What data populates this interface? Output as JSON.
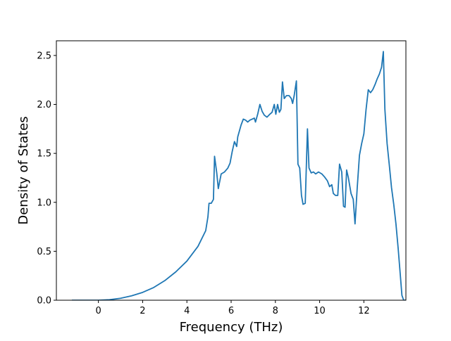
{
  "chart_data": {
    "type": "line",
    "title": "",
    "xlabel": "Frequency (THz)",
    "ylabel": "Density of States",
    "xlim": [
      -1.9,
      13.9
    ],
    "ylim": [
      0.0,
      2.65
    ],
    "xticks": [
      0,
      2,
      4,
      6,
      8,
      10,
      12
    ],
    "xtick_labels": [
      "0",
      "2",
      "4",
      "6",
      "8",
      "10",
      "12"
    ],
    "yticks": [
      0.0,
      0.5,
      1.0,
      1.5,
      2.0,
      2.5
    ],
    "ytick_labels": [
      "0.0",
      "0.5",
      "1.0",
      "1.5",
      "2.0",
      "2.5"
    ],
    "grid": false,
    "legend": false,
    "series": [
      {
        "color": "#1f77b4",
        "points": [
          [
            -1.2,
            0.0
          ],
          [
            0.0,
            0.0
          ],
          [
            0.5,
            0.005
          ],
          [
            1.0,
            0.02
          ],
          [
            1.5,
            0.045
          ],
          [
            2.0,
            0.08
          ],
          [
            2.5,
            0.13
          ],
          [
            3.0,
            0.2
          ],
          [
            3.5,
            0.29
          ],
          [
            4.0,
            0.4
          ],
          [
            4.5,
            0.55
          ],
          [
            4.85,
            0.71
          ],
          [
            4.95,
            0.85
          ],
          [
            5.0,
            0.99
          ],
          [
            5.1,
            0.99
          ],
          [
            5.2,
            1.03
          ],
          [
            5.25,
            1.47
          ],
          [
            5.35,
            1.3
          ],
          [
            5.42,
            1.14
          ],
          [
            5.55,
            1.29
          ],
          [
            5.7,
            1.31
          ],
          [
            5.85,
            1.35
          ],
          [
            5.95,
            1.4
          ],
          [
            6.05,
            1.52
          ],
          [
            6.15,
            1.62
          ],
          [
            6.25,
            1.57
          ],
          [
            6.3,
            1.67
          ],
          [
            6.45,
            1.79
          ],
          [
            6.55,
            1.85
          ],
          [
            6.65,
            1.84
          ],
          [
            6.75,
            1.82
          ],
          [
            6.85,
            1.84
          ],
          [
            6.95,
            1.85
          ],
          [
            7.05,
            1.86
          ],
          [
            7.1,
            1.82
          ],
          [
            7.2,
            1.9
          ],
          [
            7.3,
            2.0
          ],
          [
            7.4,
            1.93
          ],
          [
            7.5,
            1.89
          ],
          [
            7.62,
            1.87
          ],
          [
            7.75,
            1.9
          ],
          [
            7.85,
            1.92
          ],
          [
            7.95,
            2.0
          ],
          [
            8.02,
            1.9
          ],
          [
            8.1,
            2.0
          ],
          [
            8.18,
            1.92
          ],
          [
            8.25,
            1.95
          ],
          [
            8.32,
            2.23
          ],
          [
            8.4,
            2.06
          ],
          [
            8.5,
            2.09
          ],
          [
            8.62,
            2.09
          ],
          [
            8.72,
            2.06
          ],
          [
            8.78,
            2.01
          ],
          [
            8.85,
            2.09
          ],
          [
            8.95,
            2.24
          ],
          [
            9.02,
            1.39
          ],
          [
            9.1,
            1.35
          ],
          [
            9.18,
            1.07
          ],
          [
            9.25,
            0.98
          ],
          [
            9.35,
            0.99
          ],
          [
            9.45,
            1.75
          ],
          [
            9.52,
            1.35
          ],
          [
            9.62,
            1.3
          ],
          [
            9.72,
            1.31
          ],
          [
            9.82,
            1.29
          ],
          [
            9.95,
            1.31
          ],
          [
            10.1,
            1.29
          ],
          [
            10.22,
            1.26
          ],
          [
            10.35,
            1.22
          ],
          [
            10.45,
            1.16
          ],
          [
            10.55,
            1.18
          ],
          [
            10.62,
            1.09
          ],
          [
            10.72,
            1.07
          ],
          [
            10.82,
            1.07
          ],
          [
            10.9,
            1.39
          ],
          [
            11.0,
            1.31
          ],
          [
            11.08,
            0.96
          ],
          [
            11.15,
            0.95
          ],
          [
            11.22,
            1.33
          ],
          [
            11.3,
            1.25
          ],
          [
            11.42,
            1.09
          ],
          [
            11.52,
            1.03
          ],
          [
            11.6,
            0.78
          ],
          [
            11.7,
            1.15
          ],
          [
            11.8,
            1.48
          ],
          [
            11.9,
            1.6
          ],
          [
            12.0,
            1.7
          ],
          [
            12.1,
            1.95
          ],
          [
            12.2,
            2.15
          ],
          [
            12.3,
            2.12
          ],
          [
            12.4,
            2.15
          ],
          [
            12.5,
            2.2
          ],
          [
            12.6,
            2.26
          ],
          [
            12.7,
            2.31
          ],
          [
            12.8,
            2.38
          ],
          [
            12.88,
            2.54
          ],
          [
            12.95,
            1.95
          ],
          [
            13.05,
            1.6
          ],
          [
            13.15,
            1.38
          ],
          [
            13.25,
            1.15
          ],
          [
            13.35,
            0.98
          ],
          [
            13.45,
            0.78
          ],
          [
            13.55,
            0.53
          ],
          [
            13.65,
            0.25
          ],
          [
            13.72,
            0.05
          ],
          [
            13.8,
            0.0
          ],
          [
            14.0,
            0.0
          ]
        ]
      }
    ]
  }
}
